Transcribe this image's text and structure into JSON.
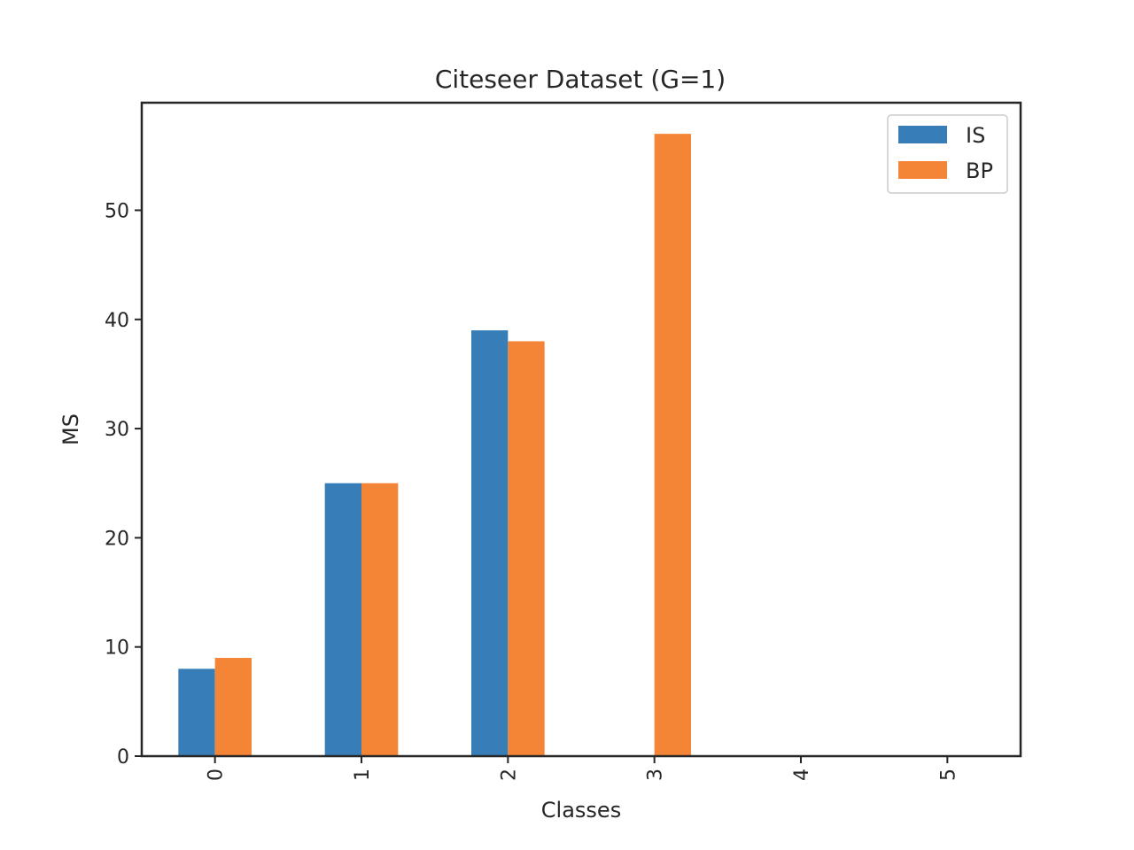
{
  "chart_data": {
    "type": "bar",
    "title": "Citeseer Dataset (G=1)",
    "xlabel": "Classes",
    "ylabel": "MS",
    "categories": [
      "0",
      "1",
      "2",
      "3",
      "4",
      "5"
    ],
    "series": [
      {
        "name": "IS",
        "values": [
          8,
          25,
          39,
          0,
          0,
          0
        ],
        "color": "#377eb8"
      },
      {
        "name": "BP",
        "values": [
          9,
          25,
          38,
          57,
          0,
          0
        ],
        "color": "#f58536"
      }
    ],
    "ylim": [
      0,
      59.85
    ],
    "yticks": [
      "0",
      "10",
      "20",
      "30",
      "40",
      "50"
    ],
    "xtick_rotation": 90,
    "legend": "top-right",
    "grid": false
  }
}
